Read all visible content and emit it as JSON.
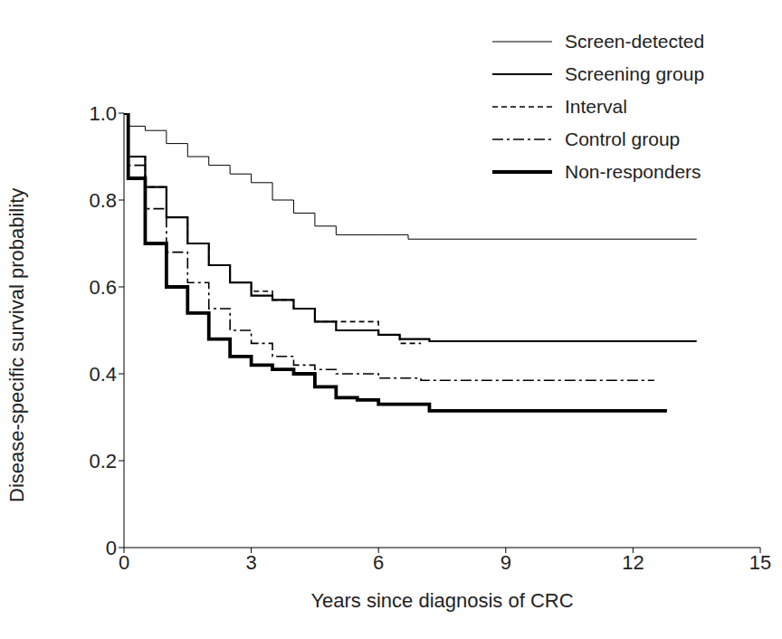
{
  "chart_data": {
    "type": "line",
    "xlabel": "Years since diagnosis of CRC",
    "ylabel": "Disease-specific survival probability",
    "xlim": [
      0,
      15
    ],
    "xticks": [
      0,
      3,
      6,
      9,
      12,
      15
    ],
    "ylim": [
      0,
      1
    ],
    "yticks": [
      0,
      0.2,
      0.4,
      0.6,
      0.8,
      {
        "value": 1,
        "label": "1.0"
      }
    ],
    "grid": false,
    "legend": "upper right",
    "series": [
      {
        "name": "Screen-detected",
        "color": "#000000",
        "line_style": "solid",
        "x": [
          0,
          0.1,
          0.5,
          1,
          1.5,
          2,
          2.5,
          3,
          3.5,
          4,
          4.5,
          5,
          6,
          6.7,
          13.5
        ],
        "values": [
          1.0,
          0.97,
          0.96,
          0.93,
          0.9,
          0.88,
          0.86,
          0.84,
          0.8,
          0.77,
          0.74,
          0.72,
          0.72,
          0.71,
          0.71
        ]
      },
      {
        "name": "Screening group",
        "color": "#000000",
        "line_style": "solid",
        "x": [
          0,
          0.1,
          0.5,
          1,
          1.5,
          2,
          2.5,
          3,
          3.5,
          4,
          4.5,
          5,
          6,
          6.5,
          7.2,
          13.5
        ],
        "values": [
          1.0,
          0.9,
          0.83,
          0.76,
          0.7,
          0.65,
          0.61,
          0.58,
          0.57,
          0.55,
          0.52,
          0.5,
          0.49,
          0.48,
          0.475,
          0.475
        ]
      },
      {
        "name": "Interval",
        "color": "#000000",
        "line_style": "dashed",
        "x": [
          0,
          0.1,
          0.5,
          1,
          1.5,
          2,
          2.5,
          3,
          3.5,
          4,
          4.5,
          5.6,
          6,
          6.5,
          7
        ],
        "values": [
          1.0,
          0.9,
          0.83,
          0.76,
          0.7,
          0.65,
          0.61,
          0.59,
          0.57,
          0.55,
          0.52,
          0.52,
          0.49,
          0.47,
          0.47
        ]
      },
      {
        "name": "Control group",
        "color": "#000000",
        "line_style": "dashdot",
        "x": [
          0,
          0.1,
          0.5,
          1,
          1.5,
          2,
          2.5,
          3,
          3.5,
          4,
          4.5,
          5,
          6,
          7,
          12.5
        ],
        "values": [
          1.0,
          0.88,
          0.78,
          0.68,
          0.61,
          0.55,
          0.5,
          0.47,
          0.44,
          0.42,
          0.41,
          0.4,
          0.39,
          0.385,
          0.385
        ]
      },
      {
        "name": "Non-responders",
        "color": "#000000",
        "line_style": "solid",
        "x": [
          0,
          0.1,
          0.5,
          1,
          1.5,
          2,
          2.5,
          3,
          3.5,
          4,
          4.5,
          5,
          5.5,
          6,
          7.2,
          12.8
        ],
        "values": [
          1.0,
          0.85,
          0.7,
          0.6,
          0.54,
          0.48,
          0.44,
          0.42,
          0.41,
          0.4,
          0.37,
          0.345,
          0.34,
          0.33,
          0.315,
          0.315
        ]
      }
    ]
  }
}
